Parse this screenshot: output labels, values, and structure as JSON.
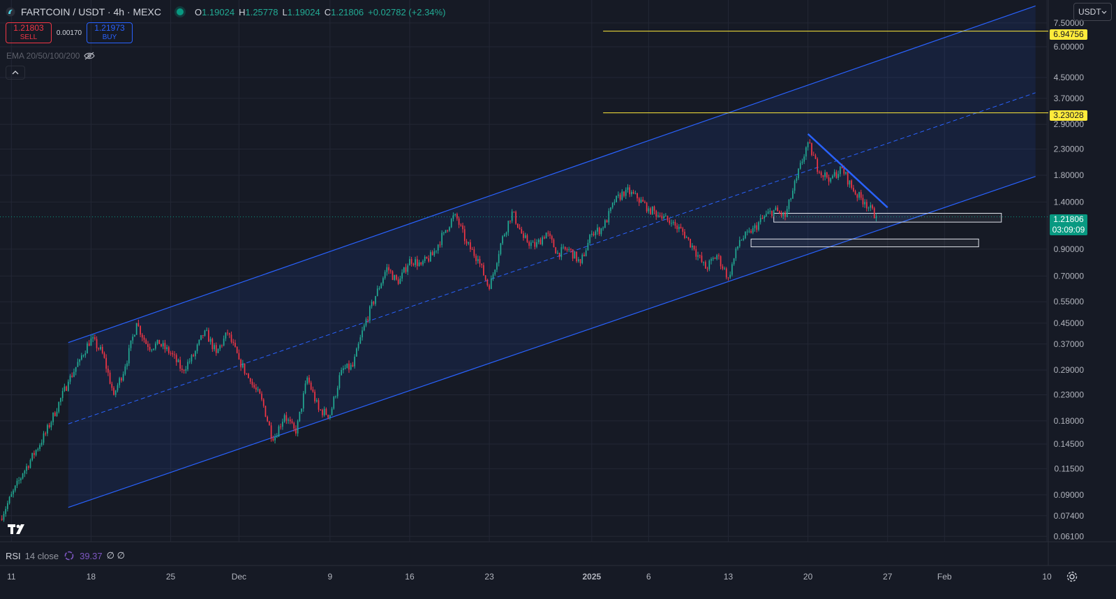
{
  "header": {
    "symbol": "FARTCOIN / USDT · 4h · MEXC",
    "ohlc": {
      "o_label": "O",
      "o": "1.19024",
      "h_label": "H",
      "h": "1.25778",
      "l_label": "L",
      "l": "1.19024",
      "c_label": "C",
      "c": "1.21806",
      "change": "+0.02782 (+2.34%)"
    }
  },
  "trade": {
    "sell_price": "1.21803",
    "sell_label": "SELL",
    "spread": "0.00170",
    "buy_price": "1.21973",
    "buy_label": "BUY"
  },
  "indicators": {
    "ema_label": "EMA 20/50/100/200",
    "rsi_name": "RSI",
    "rsi_params": "14 close",
    "rsi_value": "39.37",
    "rsi_extra": "∅ ∅"
  },
  "currency": {
    "label": "USDT"
  },
  "price_tags": {
    "upper_level": "6.94756",
    "mid_level": "3.23028",
    "current_price": "1.21806",
    "countdown": "03:09:09"
  },
  "colors": {
    "background": "#161a25",
    "up": "#22ab94",
    "down": "#f23645",
    "channel": "#2962ff",
    "level": "#ffeb3b",
    "last_price": "#089981"
  },
  "icons": [
    "logo-icon",
    "eye-hidden-icon",
    "chevron-up-icon",
    "chevron-down-icon",
    "tradingview-logo-icon",
    "rsi-icon",
    "settings-icon"
  ],
  "chart_data": {
    "type": "candlestick",
    "title": "FARTCOIN / USDT · 4h · MEXC",
    "y_scale": "log",
    "ylim": [
      0.058,
      9.3
    ],
    "y_ticks": [
      "7.50000",
      "6.00000",
      "4.50000",
      "3.70000",
      "2.90000",
      "2.30000",
      "1.80000",
      "1.40000",
      "0.90000",
      "0.70000",
      "0.55000",
      "0.45000",
      "0.37000",
      "0.29000",
      "0.23000",
      "0.18000",
      "0.14500",
      "0.11500",
      "0.09000",
      "0.07400",
      "0.06100"
    ],
    "x_ticks": [
      "11",
      "18",
      "25",
      "Dec",
      "9",
      "16",
      "23",
      "2025",
      "6",
      "13",
      "20",
      "27",
      "Feb",
      "10"
    ],
    "x_range": [
      "2024-11-10",
      "2025-02-10"
    ],
    "anchors": [
      [
        "2024-11-10",
        0.072
      ],
      [
        "2024-11-12",
        0.11
      ],
      [
        "2024-11-14",
        0.16
      ],
      [
        "2024-11-16",
        0.26
      ],
      [
        "2024-11-17",
        0.32
      ],
      [
        "2024-11-18",
        0.39
      ],
      [
        "2024-11-19",
        0.34
      ],
      [
        "2024-11-20",
        0.23
      ],
      [
        "2024-11-21",
        0.3
      ],
      [
        "2024-11-22",
        0.45
      ],
      [
        "2024-11-23",
        0.36
      ],
      [
        "2024-11-24",
        0.37
      ],
      [
        "2024-11-25",
        0.34
      ],
      [
        "2024-11-26",
        0.29
      ],
      [
        "2024-11-27",
        0.33
      ],
      [
        "2024-11-28",
        0.42
      ],
      [
        "2024-11-29",
        0.34
      ],
      [
        "2024-11-30",
        0.41
      ],
      [
        "2024-12-01",
        0.32
      ],
      [
        "2024-12-02",
        0.26
      ],
      [
        "2024-12-03",
        0.22
      ],
      [
        "2024-12-04",
        0.15
      ],
      [
        "2024-12-05",
        0.19
      ],
      [
        "2024-12-06",
        0.16
      ],
      [
        "2024-12-07",
        0.27
      ],
      [
        "2024-12-08",
        0.2
      ],
      [
        "2024-12-09",
        0.19
      ],
      [
        "2024-12-10",
        0.29
      ],
      [
        "2024-12-11",
        0.3
      ],
      [
        "2024-12-12",
        0.44
      ],
      [
        "2024-12-13",
        0.58
      ],
      [
        "2024-12-14",
        0.76
      ],
      [
        "2024-12-15",
        0.65
      ],
      [
        "2024-12-16",
        0.82
      ],
      [
        "2024-12-17",
        0.78
      ],
      [
        "2024-12-18",
        0.85
      ],
      [
        "2024-12-19",
        1.05
      ],
      [
        "2024-12-20",
        1.25
      ],
      [
        "2024-12-21",
        0.95
      ],
      [
        "2024-12-22",
        0.82
      ],
      [
        "2024-12-23",
        0.62
      ],
      [
        "2024-12-24",
        0.95
      ],
      [
        "2024-12-25",
        1.28
      ],
      [
        "2024-12-26",
        1.0
      ],
      [
        "2024-12-27",
        0.92
      ],
      [
        "2024-12-28",
        1.05
      ],
      [
        "2024-12-29",
        0.87
      ],
      [
        "2024-12-30",
        0.9
      ],
      [
        "2024-12-31",
        0.79
      ],
      [
        "2025-01-01",
        1.04
      ],
      [
        "2025-01-02",
        1.1
      ],
      [
        "2025-01-03",
        1.4
      ],
      [
        "2025-01-04",
        1.57
      ],
      [
        "2025-01-05",
        1.45
      ],
      [
        "2025-01-06",
        1.32
      ],
      [
        "2025-01-07",
        1.23
      ],
      [
        "2025-01-08",
        1.15
      ],
      [
        "2025-01-09",
        1.06
      ],
      [
        "2025-01-10",
        0.9
      ],
      [
        "2025-01-11",
        0.75
      ],
      [
        "2025-01-12",
        0.85
      ],
      [
        "2025-01-13",
        0.69
      ],
      [
        "2025-01-14",
        0.98
      ],
      [
        "2025-01-15",
        1.05
      ],
      [
        "2025-01-16",
        1.2
      ],
      [
        "2025-01-17",
        1.3
      ],
      [
        "2025-01-18",
        1.22
      ],
      [
        "2025-01-19",
        1.75
      ],
      [
        "2025-01-20",
        2.45
      ],
      [
        "2025-01-21",
        1.85
      ],
      [
        "2025-01-22",
        1.75
      ],
      [
        "2025-01-23",
        1.92
      ],
      [
        "2025-01-24",
        1.55
      ],
      [
        "2025-01-25",
        1.4
      ],
      [
        "2025-01-26",
        1.21806
      ]
    ],
    "channel": {
      "start_date": "2024-11-16",
      "end_date": "2025-02-09",
      "upper": [
        0.375,
        8.8
      ],
      "mid": [
        0.175,
        3.9
      ],
      "lower": [
        0.08,
        1.78
      ]
    },
    "trendline": {
      "from": [
        "2025-01-20",
        2.65
      ],
      "to": [
        "2025-01-27",
        1.33
      ]
    },
    "horizontal_levels": [
      {
        "price": 6.94756,
        "from": "2025-01-02"
      },
      {
        "price": 3.23028,
        "from": "2025-01-02"
      }
    ],
    "zones": [
      {
        "from": "2025-01-17",
        "to": "2025-02-06",
        "low": 1.16,
        "high": 1.26
      },
      {
        "from": "2025-01-15",
        "to": "2025-02-04",
        "low": 0.92,
        "high": 0.99
      }
    ],
    "last_price": 1.21806,
    "grid": true
  }
}
